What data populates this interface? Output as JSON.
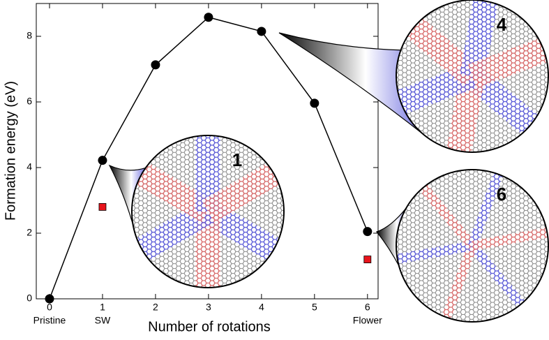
{
  "chart_data": {
    "type": "line",
    "x_label": "Number of rotations",
    "y_label": "Formation energy (eV)",
    "x": [
      0,
      1,
      2,
      3,
      4,
      5,
      6
    ],
    "categories": [
      "Pristine",
      "SW",
      null,
      null,
      null,
      null,
      "Flower"
    ],
    "series": [
      {
        "color": "#000000",
        "marker": "circle",
        "line": true,
        "values": [
          0,
          4.22,
          7.13,
          8.58,
          8.15,
          5.96,
          2.05
        ]
      },
      {
        "color": "#e8141c",
        "marker": "square",
        "line": false,
        "values": [
          null,
          2.8,
          null,
          null,
          null,
          null,
          1.2
        ]
      }
    ],
    "xlim": [
      -0.25,
      6.2
    ],
    "ylim": [
      0,
      9
    ],
    "xticks": [
      0,
      1,
      2,
      3,
      4,
      5,
      6
    ],
    "yticks": [
      0,
      2,
      4,
      6,
      8
    ],
    "grid": false,
    "insets": [
      {
        "label": "1"
      },
      {
        "label": "4"
      },
      {
        "label": "6"
      }
    ]
  }
}
